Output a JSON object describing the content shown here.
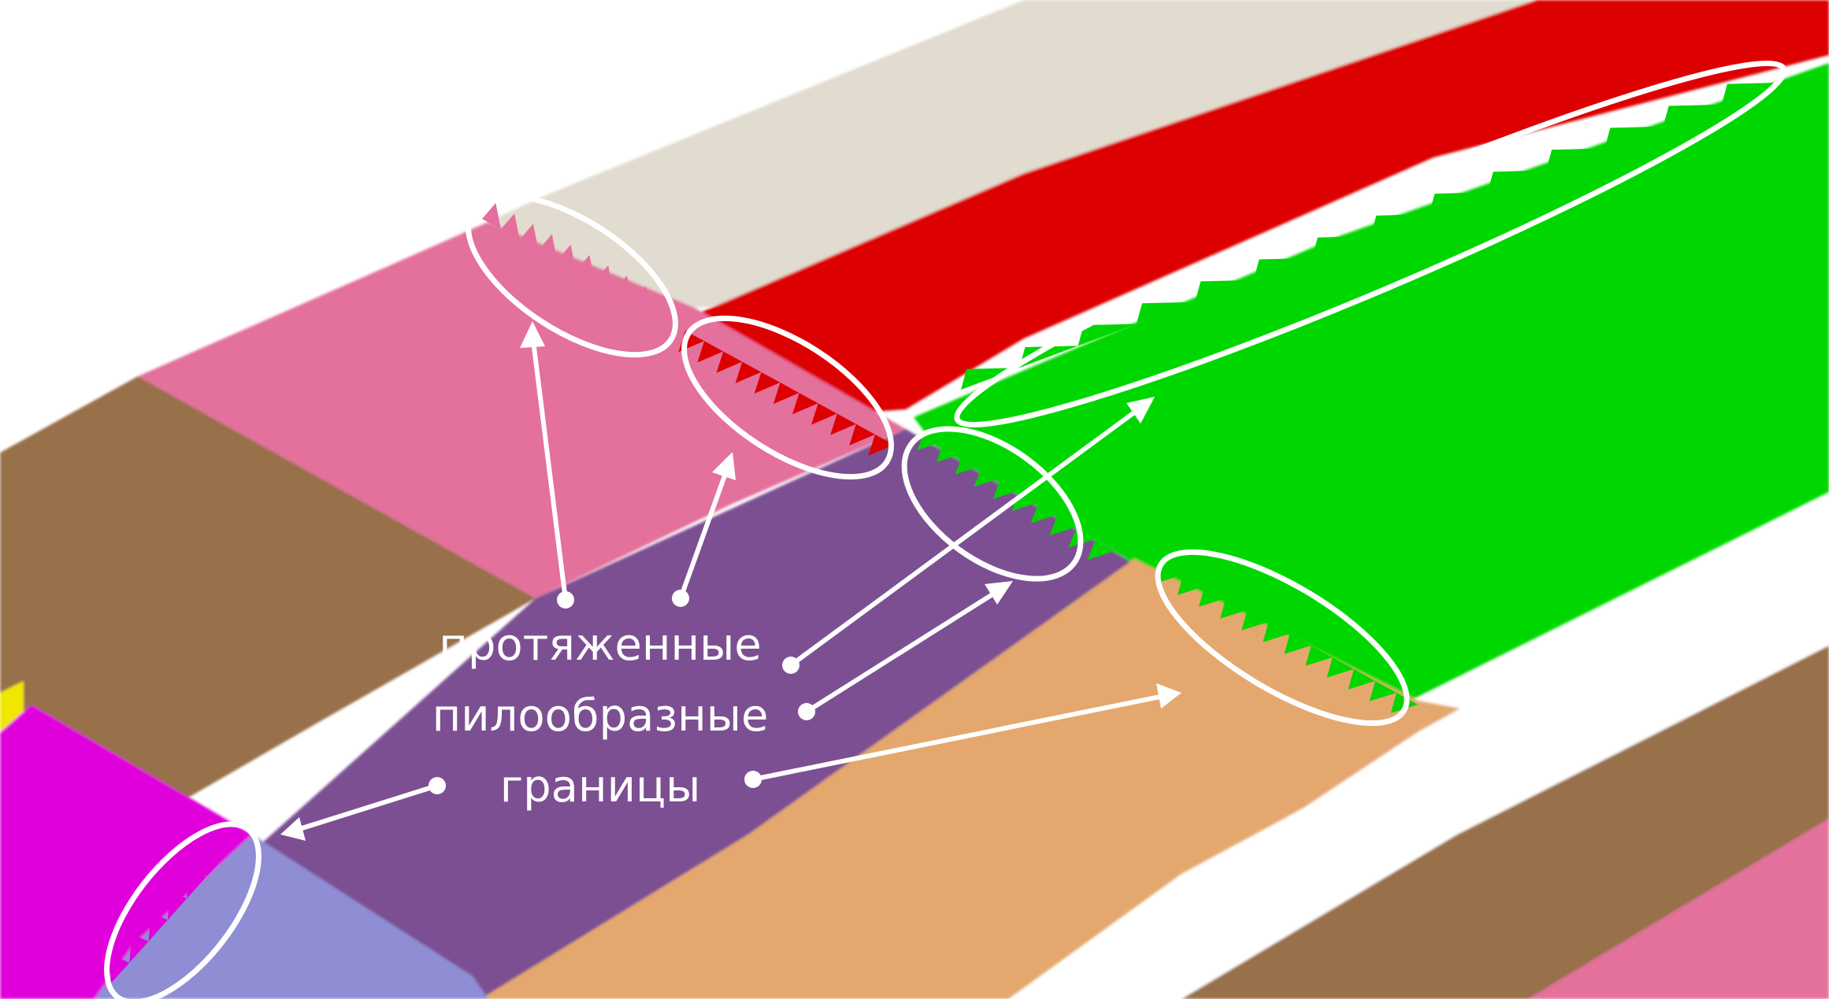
{
  "annotation": {
    "line1": "протяженные",
    "line2": "пилообразные",
    "line3": "границы"
  },
  "colors": {
    "background": "#ffffff",
    "beige": "#e1dccf",
    "red": "#dd0000",
    "green": "#00d700",
    "pink": "#e46f9c",
    "brown": "#98704a",
    "purple": "#7b4f93",
    "orange": "#e4a86e",
    "magenta": "#e000dc",
    "lavender": "#8f8dd4",
    "yellow": "#f0e600",
    "annotation": "#ffffff"
  }
}
